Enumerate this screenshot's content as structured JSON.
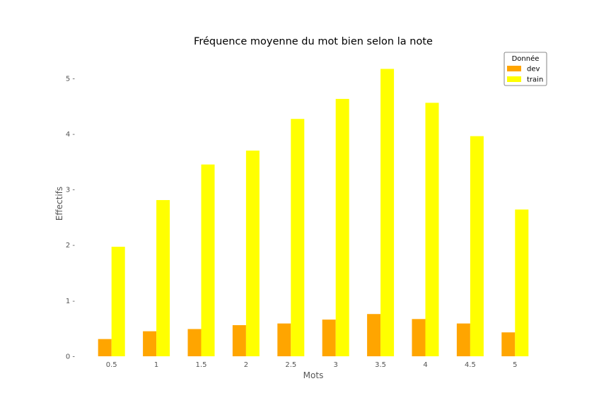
{
  "chart_data": {
    "type": "bar",
    "title": "Fréquence moyenne du mot bien selon la note",
    "xlabel": "Mots",
    "ylabel": "Effectifs",
    "categories": [
      "0.5",
      "1",
      "1.5",
      "2",
      "2.5",
      "3",
      "3.5",
      "4",
      "4.5",
      "5"
    ],
    "series": [
      {
        "name": "dev",
        "color": "#FFA500",
        "values": [
          0.31,
          0.45,
          0.49,
          0.56,
          0.59,
          0.66,
          0.76,
          0.67,
          0.59,
          0.43
        ]
      },
      {
        "name": "train",
        "color": "#FFFF00",
        "values": [
          1.97,
          2.81,
          3.45,
          3.7,
          4.27,
          4.63,
          5.17,
          4.56,
          3.96,
          2.64
        ]
      }
    ],
    "yticks": [
      "0",
      "1",
      "2",
      "3",
      "4",
      "5"
    ],
    "ylim": [
      0,
      5.43
    ],
    "grid": false,
    "legend": {
      "title": "Donnée",
      "position": "top-right"
    }
  }
}
